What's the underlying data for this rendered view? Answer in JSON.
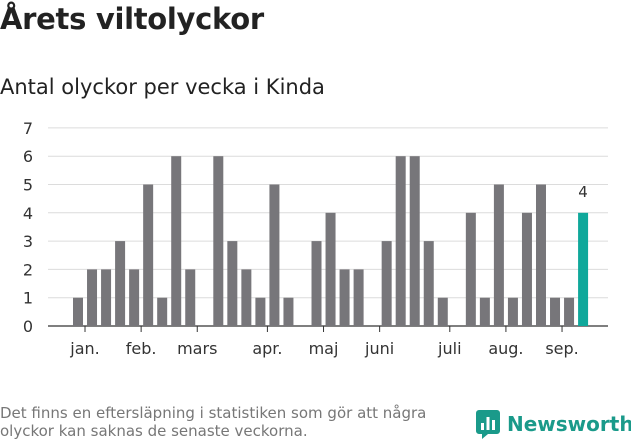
{
  "header": {
    "title": "Årets viltolyckor",
    "subtitle": "Antal olyckor per vecka i Kinda"
  },
  "footer": {
    "note": "Det finns en eftersläpning i statistiken som gör att några olyckor kan saknas de senaste veckorna.",
    "brand": "Newsworthy"
  },
  "colors": {
    "bar": "#77767a",
    "highlight": "#0fa89b",
    "brand": "#1a9a8a"
  },
  "chart_data": {
    "type": "bar",
    "x": [
      2,
      3,
      4,
      5,
      6,
      7,
      8,
      9,
      10,
      11,
      12,
      13,
      14,
      15,
      16,
      17,
      18,
      19,
      20,
      21,
      22,
      23,
      24,
      25,
      26,
      27,
      28,
      29,
      30,
      31,
      32,
      33,
      34,
      35,
      36,
      37,
      38
    ],
    "values": [
      1,
      2,
      2,
      3,
      2,
      5,
      1,
      6,
      2,
      0,
      6,
      3,
      2,
      1,
      5,
      1,
      0,
      3,
      4,
      2,
      2,
      0,
      3,
      6,
      6,
      3,
      1,
      0,
      4,
      1,
      5,
      1,
      4,
      5,
      1,
      1,
      4
    ],
    "highlight_label": "4",
    "months": [
      {
        "label": "jan.",
        "at": 2.5
      },
      {
        "label": "feb.",
        "at": 6.5
      },
      {
        "label": "mars",
        "at": 10.5
      },
      {
        "label": "apr.",
        "at": 15.5
      },
      {
        "label": "maj",
        "at": 19.5
      },
      {
        "label": "juni",
        "at": 23.5
      },
      {
        "label": "juli",
        "at": 28.5
      },
      {
        "label": "aug.",
        "at": 32.5
      },
      {
        "label": "sep.",
        "at": 36.5
      }
    ],
    "yticks": [
      0,
      1,
      2,
      3,
      4,
      5,
      6,
      7
    ],
    "ylim": [
      0,
      7
    ],
    "grid": true
  }
}
